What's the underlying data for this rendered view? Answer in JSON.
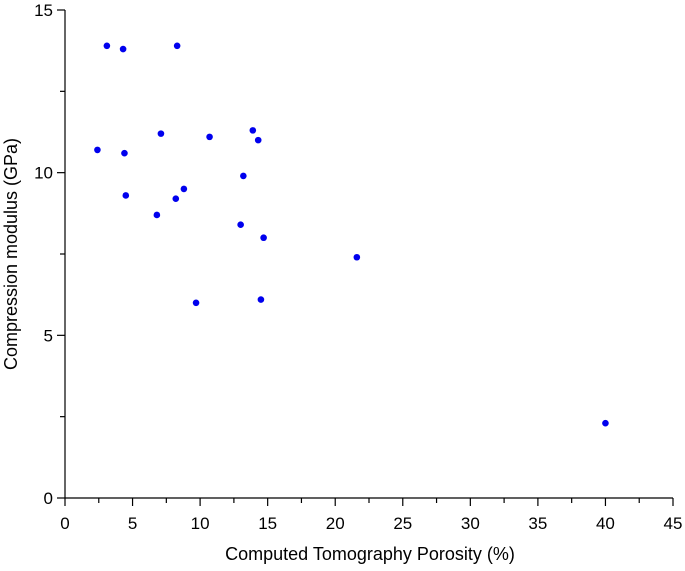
{
  "chart_data": {
    "type": "scatter",
    "title": "",
    "xlabel": "Computed Tomography Porosity (%)",
    "ylabel": "Compression modulus (GPa)",
    "xlim": [
      0,
      45
    ],
    "ylim": [
      0,
      15
    ],
    "x_ticks": [
      0,
      5,
      10,
      15,
      20,
      25,
      30,
      35,
      40,
      45
    ],
    "y_ticks": [
      0,
      5,
      10,
      15
    ],
    "grid": false,
    "legend": "none",
    "marker_color": "#0000ee",
    "points": [
      {
        "x": 3.1,
        "y": 13.9
      },
      {
        "x": 4.3,
        "y": 13.8
      },
      {
        "x": 8.3,
        "y": 13.9
      },
      {
        "x": 2.4,
        "y": 10.7
      },
      {
        "x": 4.4,
        "y": 10.6
      },
      {
        "x": 7.1,
        "y": 11.2
      },
      {
        "x": 10.7,
        "y": 11.1
      },
      {
        "x": 13.9,
        "y": 11.3
      },
      {
        "x": 14.3,
        "y": 11.0
      },
      {
        "x": 13.2,
        "y": 9.9
      },
      {
        "x": 4.5,
        "y": 9.3
      },
      {
        "x": 8.8,
        "y": 9.5
      },
      {
        "x": 8.2,
        "y": 9.2
      },
      {
        "x": 6.8,
        "y": 8.7
      },
      {
        "x": 13.0,
        "y": 8.4
      },
      {
        "x": 14.7,
        "y": 8.0
      },
      {
        "x": 21.6,
        "y": 7.4
      },
      {
        "x": 9.7,
        "y": 6.0
      },
      {
        "x": 14.5,
        "y": 6.1
      },
      {
        "x": 40.0,
        "y": 2.3
      }
    ]
  }
}
